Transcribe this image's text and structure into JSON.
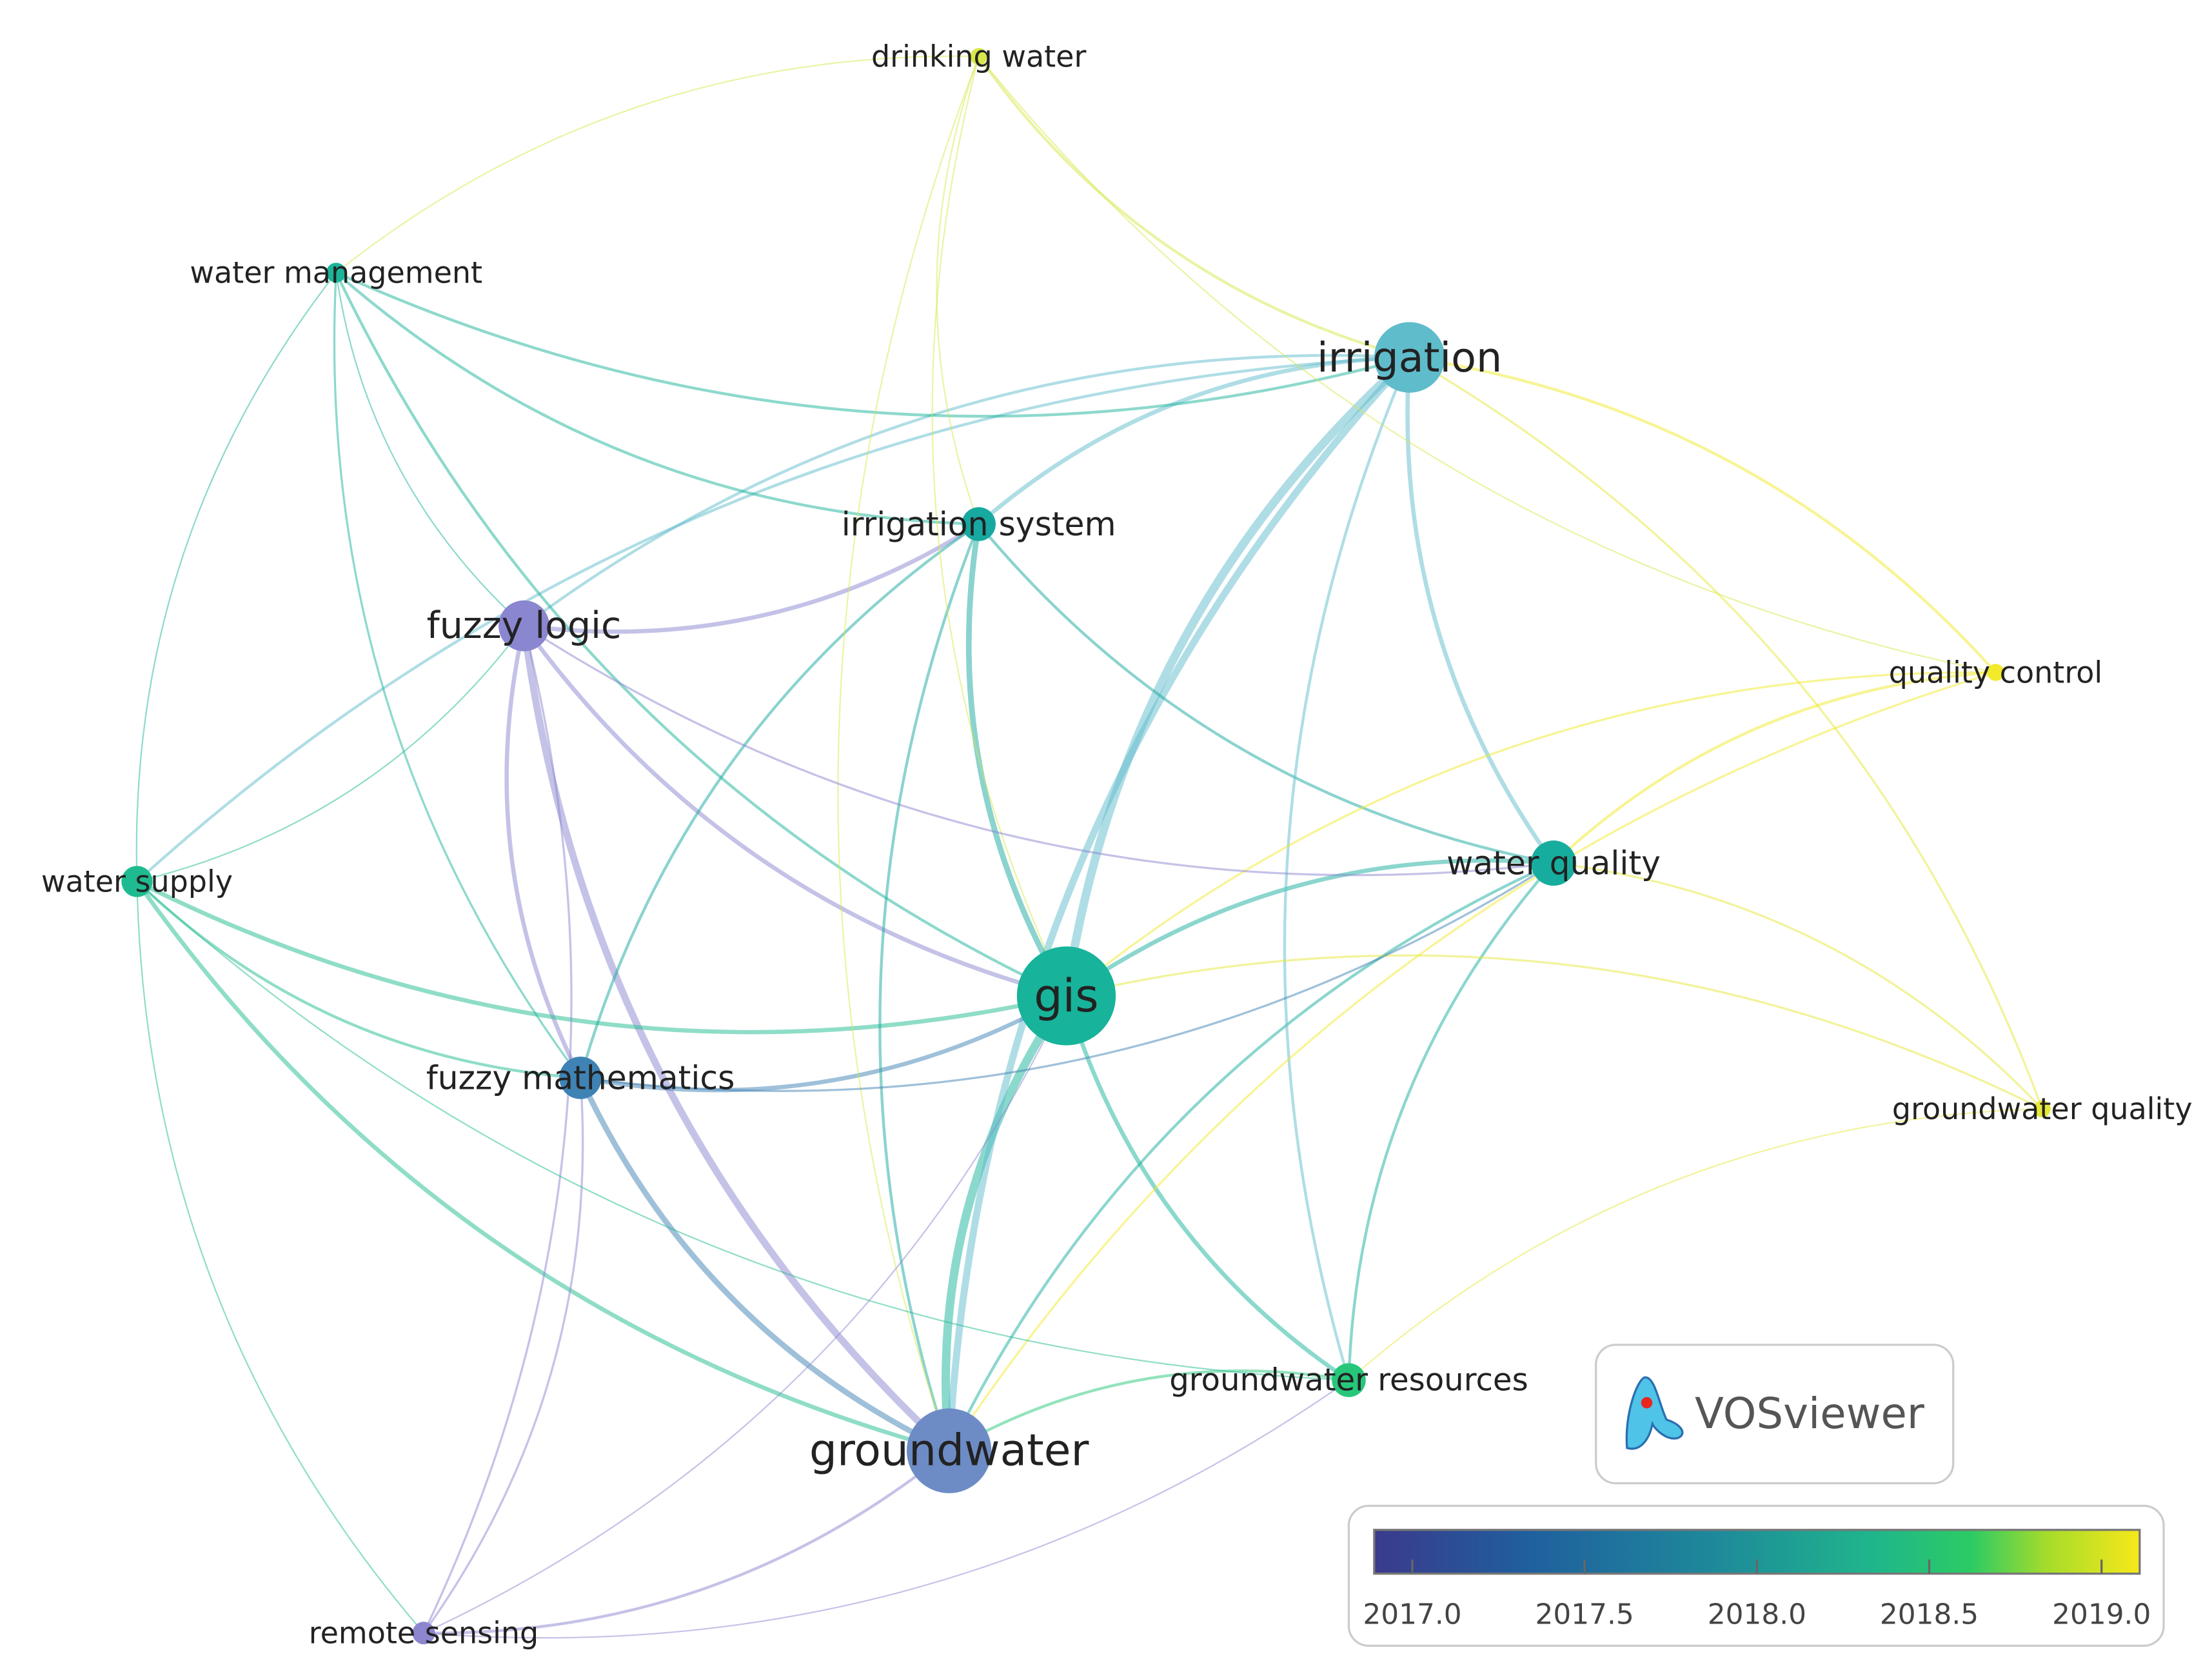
{
  "nodes": [
    {
      "label": "drinking water"
    },
    {
      "label": "water management"
    },
    {
      "label": "irrigation"
    },
    {
      "label": "irrigation system"
    },
    {
      "label": "fuzzy logic"
    },
    {
      "label": "quality control"
    },
    {
      "label": "water supply"
    },
    {
      "label": "water quality"
    },
    {
      "label": "gis"
    },
    {
      "label": "fuzzy mathematics"
    },
    {
      "label": "groundwater quality"
    },
    {
      "label": "groundwater resources"
    },
    {
      "label": "groundwater"
    },
    {
      "label": "remote sensing"
    }
  ],
  "logo": "VOSviewer",
  "legend": {
    "ticks": [
      "2017.0",
      "2017.5",
      "2018.0",
      "2018.5",
      "2019.0"
    ]
  }
}
